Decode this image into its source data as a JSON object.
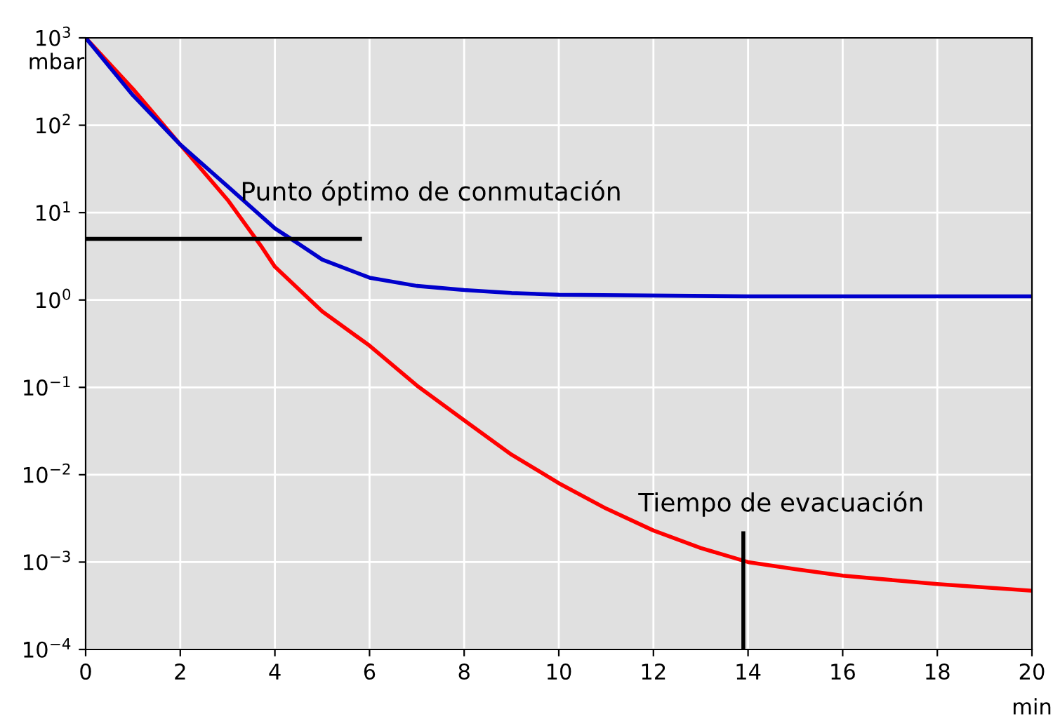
{
  "chart_data": {
    "type": "line",
    "xlabel": "min",
    "ylabel": "mbar",
    "log": "y",
    "xlim": [
      0,
      20
    ],
    "xticks": [
      0,
      2,
      4,
      6,
      8,
      10,
      12,
      14,
      16,
      18,
      20
    ],
    "ylim": [
      0.0001,
      1000
    ],
    "yticks": [
      {
        "value": 0.0001,
        "label": "10$^{−4}$"
      },
      {
        "value": 0.001,
        "label": "10$^{−3}$"
      },
      {
        "value": 0.01,
        "label": "10$^{−2}$"
      },
      {
        "value": 0.1,
        "label": "10$^{−1}$"
      },
      {
        "value": 1,
        "label": "10$^{0}$"
      },
      {
        "value": 10,
        "label": "10$^{1}$"
      },
      {
        "value": 100,
        "label": "10$^{2}$"
      },
      {
        "value": 1000,
        "label": "10$^{3}$"
      }
    ],
    "grid": true,
    "marker": "none",
    "line_style": "solid",
    "series": [
      {
        "color": "#ff0000",
        "x": [
          0,
          1,
          2,
          3,
          3.7,
          4,
          5,
          6,
          7,
          8,
          9,
          10,
          11,
          12,
          13,
          14,
          15,
          16,
          18,
          20
        ],
        "values": [
          1000,
          260,
          60,
          14,
          4.2,
          2.4,
          0.74,
          0.3,
          0.105,
          0.042,
          0.017,
          0.008,
          0.0041,
          0.0023,
          0.00145,
          0.001,
          0.00083,
          0.0007,
          0.00056,
          0.00047
        ]
      },
      {
        "color": "#0000cc",
        "x": [
          0,
          1,
          2,
          3,
          4,
          4.5,
          5,
          6,
          7,
          8,
          9,
          10,
          14,
          20
        ],
        "values": [
          1000,
          220,
          60,
          20,
          6.6,
          4.4,
          2.9,
          1.8,
          1.45,
          1.3,
          1.2,
          1.15,
          1.1,
          1.1
        ]
      }
    ],
    "ref_lines": [
      {
        "axis": "y",
        "value": 5,
        "label": "Punto óptimo de conmutación",
        "color": "#000000"
      },
      {
        "axis": "x",
        "value": 13.9,
        "label": "Tiempo de evacuación",
        "color": "#000000"
      }
    ]
  }
}
